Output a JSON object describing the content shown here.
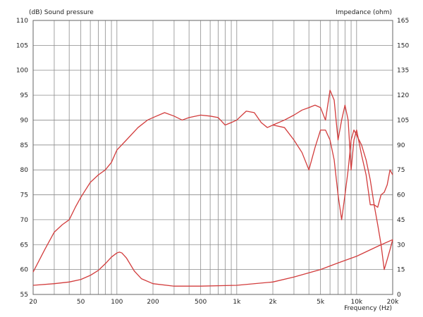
{
  "chart_data": {
    "type": "line",
    "x_scale": "log",
    "xlim": [
      20,
      20000
    ],
    "ylim_left": [
      55,
      110
    ],
    "ylim_right": [
      0,
      165
    ],
    "left_axis_label": "(dB)  Sound pressure",
    "right_axis_label": "Impedance  (ohm)",
    "xlabel": "Frequency  (Hz)",
    "grid": true,
    "line_color": "#d23c3c",
    "x_ticks": [
      {
        "value": 20,
        "label": "20"
      },
      {
        "value": 50,
        "label": "50"
      },
      {
        "value": 100,
        "label": "100"
      },
      {
        "value": 200,
        "label": "200"
      },
      {
        "value": 500,
        "label": "500"
      },
      {
        "value": 1000,
        "label": "1k"
      },
      {
        "value": 2000,
        "label": "2k"
      },
      {
        "value": 5000,
        "label": "5k"
      },
      {
        "value": 10000,
        "label": "10k"
      },
      {
        "value": 20000,
        "label": "20k"
      }
    ],
    "y_ticks_left": [
      "55",
      "60",
      "65",
      "70",
      "75",
      "80",
      "85",
      "90",
      "95",
      "100",
      "105",
      "110"
    ],
    "y_ticks_right": [
      "0",
      "15",
      "30",
      "45",
      "60",
      "75",
      "90",
      "105",
      "120",
      "135",
      "150",
      "165"
    ],
    "series": [
      {
        "axis": "left",
        "x": [
          20,
          25,
          30,
          35,
          40,
          45,
          50,
          60,
          70,
          80,
          90,
          100,
          120,
          150,
          180,
          200,
          250,
          300,
          350,
          400,
          500,
          600,
          700,
          800,
          900,
          1000,
          1200,
          1400,
          1600,
          1800,
          2000,
          2500,
          3000,
          3500,
          4000,
          4500,
          5000,
          5500,
          6000,
          6500,
          7000,
          7500,
          8000,
          8500,
          9000,
          9500,
          10000,
          11000,
          12000,
          13000,
          14000,
          15000,
          16000,
          17000,
          18000,
          19000,
          20000
        ],
        "y": [
          59.5,
          64,
          67.5,
          69,
          70,
          72.5,
          74.5,
          77.5,
          79,
          80,
          81.5,
          84,
          86,
          88.5,
          90,
          90.5,
          91.5,
          90.8,
          90,
          90.5,
          91,
          90.8,
          90.5,
          89,
          89.5,
          90,
          91.8,
          91.5,
          89.5,
          88.5,
          89,
          88.5,
          86,
          83.5,
          80,
          84.5,
          88,
          88,
          86,
          82,
          75,
          70,
          75,
          80,
          86,
          88,
          87,
          85,
          82,
          78,
          73,
          69,
          65,
          60,
          62,
          64,
          66
        ]
      },
      {
        "axis": "left",
        "x": [
          2000,
          2500,
          3000,
          3500,
          4000,
          4500,
          5000,
          5500,
          6000,
          6500,
          7000,
          7500,
          8000,
          8500,
          9000,
          9500,
          10000,
          11000,
          12000,
          13000,
          14000,
          15000,
          16000,
          17000,
          18000,
          19000,
          20000
        ],
        "y": [
          89,
          90,
          91,
          92,
          92.5,
          93,
          92.5,
          90,
          96,
          94,
          86,
          90,
          93,
          90,
          80,
          86,
          88,
          83,
          79,
          73,
          73,
          72.5,
          75,
          75.5,
          77,
          80,
          79
        ]
      },
      {
        "axis": "right",
        "x": [
          20,
          30,
          40,
          50,
          60,
          70,
          80,
          90,
          100,
          105,
          110,
          120,
          140,
          160,
          200,
          300,
          500,
          1000,
          2000,
          3000,
          5000,
          7000,
          10000,
          15000,
          20000
        ],
        "y": [
          5.5,
          6.5,
          7.5,
          9,
          11.5,
          14.5,
          18.5,
          22.5,
          25,
          25.5,
          25,
          22,
          14,
          9.5,
          6.5,
          5,
          5,
          5.5,
          7.5,
          10.5,
          15,
          19,
          23,
          29,
          33
        ]
      }
    ]
  }
}
